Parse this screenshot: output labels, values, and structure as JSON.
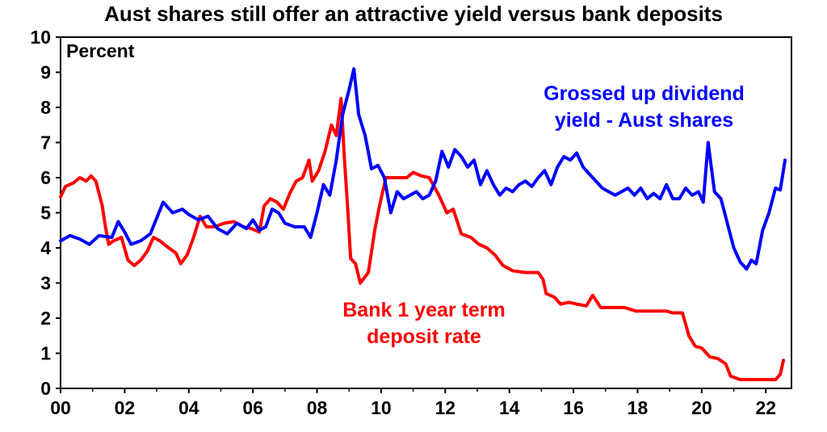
{
  "chart_data": {
    "type": "line",
    "title": "Aust shares still offer an attractive yield versus bank deposits",
    "ylabel": "Percent",
    "xlabel": "",
    "xlim": [
      2000,
      2022.8
    ],
    "ylim": [
      0,
      10
    ],
    "x_ticks": [
      2000,
      2002,
      2004,
      2006,
      2008,
      2010,
      2012,
      2014,
      2016,
      2018,
      2020,
      2022
    ],
    "x_tick_labels": [
      "00",
      "02",
      "04",
      "06",
      "08",
      "10",
      "12",
      "14",
      "16",
      "18",
      "20",
      "22"
    ],
    "y_ticks": [
      0,
      1,
      2,
      3,
      4,
      5,
      6,
      7,
      8,
      9,
      10
    ],
    "grid": false,
    "legend": "none",
    "series": [
      {
        "name": "Grossed up dividend yield - Aust shares",
        "label_lines": [
          "Grossed up dividend",
          "yield - Aust shares"
        ],
        "color": "#0000ff",
        "points": [
          [
            2000.0,
            4.2
          ],
          [
            2000.3,
            4.35
          ],
          [
            2000.6,
            4.25
          ],
          [
            2000.9,
            4.1
          ],
          [
            2001.2,
            4.35
          ],
          [
            2001.6,
            4.3
          ],
          [
            2001.8,
            4.75
          ],
          [
            2002.0,
            4.45
          ],
          [
            2002.2,
            4.1
          ],
          [
            2002.5,
            4.2
          ],
          [
            2002.8,
            4.4
          ],
          [
            2003.0,
            4.85
          ],
          [
            2003.2,
            5.3
          ],
          [
            2003.5,
            5.0
          ],
          [
            2003.8,
            5.1
          ],
          [
            2004.0,
            4.95
          ],
          [
            2004.3,
            4.8
          ],
          [
            2004.6,
            4.9
          ],
          [
            2004.9,
            4.55
          ],
          [
            2005.2,
            4.4
          ],
          [
            2005.5,
            4.7
          ],
          [
            2005.8,
            4.55
          ],
          [
            2006.0,
            4.8
          ],
          [
            2006.2,
            4.5
          ],
          [
            2006.4,
            4.6
          ],
          [
            2006.6,
            5.1
          ],
          [
            2006.8,
            5.0
          ],
          [
            2007.0,
            4.7
          ],
          [
            2007.3,
            4.6
          ],
          [
            2007.6,
            4.6
          ],
          [
            2007.8,
            4.3
          ],
          [
            2008.0,
            5.0
          ],
          [
            2008.2,
            5.8
          ],
          [
            2008.4,
            5.5
          ],
          [
            2008.6,
            6.5
          ],
          [
            2008.8,
            7.8
          ],
          [
            2009.0,
            8.5
          ],
          [
            2009.15,
            9.1
          ],
          [
            2009.3,
            7.8
          ],
          [
            2009.5,
            7.2
          ],
          [
            2009.7,
            6.25
          ],
          [
            2009.9,
            6.35
          ],
          [
            2010.1,
            6.0
          ],
          [
            2010.3,
            5.0
          ],
          [
            2010.5,
            5.6
          ],
          [
            2010.7,
            5.4
          ],
          [
            2010.9,
            5.5
          ],
          [
            2011.1,
            5.6
          ],
          [
            2011.3,
            5.4
          ],
          [
            2011.5,
            5.5
          ],
          [
            2011.7,
            5.9
          ],
          [
            2011.9,
            6.75
          ],
          [
            2012.1,
            6.3
          ],
          [
            2012.3,
            6.8
          ],
          [
            2012.5,
            6.6
          ],
          [
            2012.7,
            6.3
          ],
          [
            2012.9,
            6.5
          ],
          [
            2013.1,
            5.8
          ],
          [
            2013.3,
            6.2
          ],
          [
            2013.5,
            5.8
          ],
          [
            2013.7,
            5.5
          ],
          [
            2013.9,
            5.7
          ],
          [
            2014.1,
            5.6
          ],
          [
            2014.3,
            5.8
          ],
          [
            2014.5,
            5.9
          ],
          [
            2014.7,
            5.75
          ],
          [
            2014.9,
            6.0
          ],
          [
            2015.1,
            6.2
          ],
          [
            2015.3,
            5.8
          ],
          [
            2015.5,
            6.3
          ],
          [
            2015.7,
            6.6
          ],
          [
            2015.9,
            6.5
          ],
          [
            2016.1,
            6.7
          ],
          [
            2016.3,
            6.3
          ],
          [
            2016.5,
            6.1
          ],
          [
            2016.7,
            5.9
          ],
          [
            2016.9,
            5.7
          ],
          [
            2017.1,
            5.6
          ],
          [
            2017.3,
            5.5
          ],
          [
            2017.5,
            5.6
          ],
          [
            2017.7,
            5.7
          ],
          [
            2017.9,
            5.5
          ],
          [
            2018.1,
            5.7
          ],
          [
            2018.3,
            5.4
          ],
          [
            2018.5,
            5.55
          ],
          [
            2018.7,
            5.4
          ],
          [
            2018.9,
            5.8
          ],
          [
            2019.1,
            5.4
          ],
          [
            2019.3,
            5.4
          ],
          [
            2019.5,
            5.7
          ],
          [
            2019.7,
            5.5
          ],
          [
            2019.9,
            5.6
          ],
          [
            2020.05,
            5.3
          ],
          [
            2020.2,
            7.0
          ],
          [
            2020.4,
            5.6
          ],
          [
            2020.6,
            5.4
          ],
          [
            2020.8,
            4.7
          ],
          [
            2021.0,
            4.0
          ],
          [
            2021.2,
            3.6
          ],
          [
            2021.4,
            3.4
          ],
          [
            2021.55,
            3.65
          ],
          [
            2021.7,
            3.55
          ],
          [
            2021.9,
            4.5
          ],
          [
            2022.1,
            5.0
          ],
          [
            2022.3,
            5.7
          ],
          [
            2022.45,
            5.65
          ],
          [
            2022.6,
            6.5
          ]
        ]
      },
      {
        "name": "Bank 1 year term deposit rate",
        "label_lines": [
          "Bank 1 year term",
          "deposit rate"
        ],
        "color": "#ff0000",
        "points": [
          [
            2000.0,
            5.45
          ],
          [
            2000.15,
            5.75
          ],
          [
            2000.4,
            5.85
          ],
          [
            2000.6,
            6.0
          ],
          [
            2000.8,
            5.9
          ],
          [
            2000.95,
            6.05
          ],
          [
            2001.1,
            5.9
          ],
          [
            2001.3,
            5.2
          ],
          [
            2001.4,
            4.6
          ],
          [
            2001.5,
            4.1
          ],
          [
            2001.65,
            4.2
          ],
          [
            2001.9,
            4.3
          ],
          [
            2002.1,
            3.65
          ],
          [
            2002.3,
            3.5
          ],
          [
            2002.5,
            3.65
          ],
          [
            2002.7,
            3.9
          ],
          [
            2002.9,
            4.3
          ],
          [
            2003.1,
            4.2
          ],
          [
            2003.3,
            4.05
          ],
          [
            2003.6,
            3.85
          ],
          [
            2003.75,
            3.55
          ],
          [
            2003.95,
            3.8
          ],
          [
            2004.15,
            4.3
          ],
          [
            2004.35,
            4.9
          ],
          [
            2004.55,
            4.6
          ],
          [
            2004.8,
            4.6
          ],
          [
            2005.1,
            4.7
          ],
          [
            2005.4,
            4.75
          ],
          [
            2005.7,
            4.6
          ],
          [
            2005.95,
            4.55
          ],
          [
            2006.2,
            4.45
          ],
          [
            2006.35,
            5.2
          ],
          [
            2006.55,
            5.4
          ],
          [
            2006.75,
            5.3
          ],
          [
            2006.95,
            5.1
          ],
          [
            2007.15,
            5.55
          ],
          [
            2007.35,
            5.9
          ],
          [
            2007.55,
            6.0
          ],
          [
            2007.75,
            6.5
          ],
          [
            2007.85,
            5.9
          ],
          [
            2008.05,
            6.2
          ],
          [
            2008.25,
            6.75
          ],
          [
            2008.45,
            7.5
          ],
          [
            2008.6,
            7.2
          ],
          [
            2008.75,
            8.25
          ],
          [
            2008.85,
            6.6
          ],
          [
            2008.95,
            5.2
          ],
          [
            2009.05,
            3.7
          ],
          [
            2009.2,
            3.55
          ],
          [
            2009.35,
            3.0
          ],
          [
            2009.6,
            3.3
          ],
          [
            2009.8,
            4.5
          ],
          [
            2009.95,
            5.2
          ],
          [
            2010.15,
            6.0
          ],
          [
            2010.5,
            6.0
          ],
          [
            2010.8,
            6.0
          ],
          [
            2011.0,
            6.15
          ],
          [
            2011.25,
            6.05
          ],
          [
            2011.5,
            6.0
          ],
          [
            2011.8,
            5.5
          ],
          [
            2012.05,
            5.0
          ],
          [
            2012.25,
            5.1
          ],
          [
            2012.5,
            4.4
          ],
          [
            2012.8,
            4.3
          ],
          [
            2013.05,
            4.1
          ],
          [
            2013.3,
            4.0
          ],
          [
            2013.55,
            3.8
          ],
          [
            2013.8,
            3.5
          ],
          [
            2014.1,
            3.35
          ],
          [
            2014.5,
            3.3
          ],
          [
            2014.9,
            3.3
          ],
          [
            2015.05,
            3.1
          ],
          [
            2015.15,
            2.7
          ],
          [
            2015.4,
            2.6
          ],
          [
            2015.6,
            2.4
          ],
          [
            2015.85,
            2.45
          ],
          [
            2016.1,
            2.4
          ],
          [
            2016.4,
            2.35
          ],
          [
            2016.6,
            2.65
          ],
          [
            2016.85,
            2.3
          ],
          [
            2017.2,
            2.3
          ],
          [
            2017.6,
            2.3
          ],
          [
            2017.95,
            2.2
          ],
          [
            2018.4,
            2.2
          ],
          [
            2018.9,
            2.2
          ],
          [
            2019.1,
            2.15
          ],
          [
            2019.4,
            2.15
          ],
          [
            2019.6,
            1.5
          ],
          [
            2019.8,
            1.2
          ],
          [
            2020.0,
            1.15
          ],
          [
            2020.25,
            0.9
          ],
          [
            2020.5,
            0.85
          ],
          [
            2020.75,
            0.7
          ],
          [
            2020.9,
            0.35
          ],
          [
            2021.2,
            0.25
          ],
          [
            2021.6,
            0.25
          ],
          [
            2021.95,
            0.25
          ],
          [
            2022.3,
            0.25
          ],
          [
            2022.45,
            0.4
          ],
          [
            2022.55,
            0.8
          ]
        ]
      }
    ]
  }
}
